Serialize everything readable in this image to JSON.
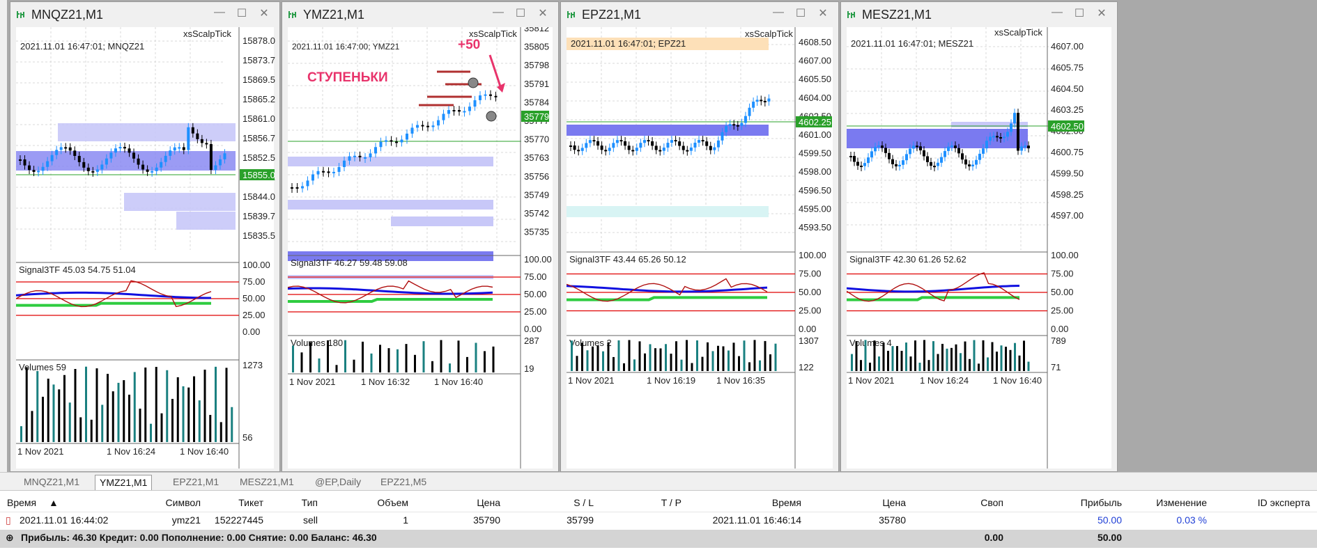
{
  "windows": [
    {
      "title": "MNQZ21,M1",
      "info": "2021.11.01 16:47:01; MNQZ21",
      "indicator_name": "xsScalpTick",
      "prices": [
        "15878.00",
        "15873.75",
        "15869.50",
        "15865.25",
        "15861.00",
        "15856.75",
        "15852.50",
        "15848.25",
        "15844.00",
        "15839.75",
        "15835.50"
      ],
      "current_price": "15855.00",
      "signal_label": "Signal3TF 45.03 54.75 51.04",
      "signal_levels": [
        "100.00",
        "75.00",
        "50.00",
        "25.00",
        "0.00"
      ],
      "volume_label": "Volumes 59",
      "volume_top": "1273",
      "volume_bottom": "56",
      "dates": [
        "1 Nov 2021",
        "1 Nov 16:24",
        "1 Nov 16:40"
      ]
    },
    {
      "title": "YMZ21,M1",
      "info": "2021.11.01 16:47:00; YMZ21",
      "indicator_name": "xsScalpTick",
      "prices": [
        "35812",
        "35805",
        "35798",
        "35791",
        "35784",
        "35777",
        "35770",
        "35763",
        "35756",
        "35749",
        "35742",
        "35735"
      ],
      "current_price": "35779",
      "annotation_text": "СТУПЕНЬКИ",
      "annotation_plus": "+50",
      "signal_label": "Signal3TF 46.27 59.48 59.08",
      "signal_levels": [
        "100.00",
        "75.00",
        "50.00",
        "25.00",
        "0.00"
      ],
      "volume_label": "Volumes 180",
      "volume_top": "287",
      "volume_bottom": "19",
      "dates": [
        "1 Nov 2021",
        "1 Nov 16:32",
        "1 Nov 16:40"
      ]
    },
    {
      "title": "EPZ21,M1",
      "info": "2021.11.01 16:47:01; EPZ21",
      "indicator_name": "xsScalpTick",
      "prices": [
        "4608.50",
        "4607.00",
        "4605.50",
        "4604.00",
        "4602.50",
        "4601.00",
        "4599.50",
        "4598.00",
        "4596.50",
        "4595.00",
        "4593.50"
      ],
      "current_price": "4602.25",
      "signal_label": "Signal3TF 43.44 65.26 50.12",
      "signal_levels": [
        "100.00",
        "75.00",
        "50.00",
        "25.00",
        "0.00"
      ],
      "volume_label": "Volumes 2",
      "volume_top": "1307",
      "volume_bottom": "122",
      "dates": [
        "1 Nov 2021",
        "1 Nov 16:19",
        "1 Nov 16:35"
      ]
    },
    {
      "title": "MESZ21,M1",
      "info": "2021.11.01 16:47:01; MESZ21",
      "indicator_name": "xsScalpTick",
      "prices": [
        "4607.00",
        "4605.75",
        "4604.50",
        "4603.25",
        "4602.00",
        "4600.75",
        "4599.50",
        "4598.25",
        "4597.00"
      ],
      "current_price": "4602.50",
      "signal_label": "Signal3TF 42.30 61.26 52.62",
      "signal_levels": [
        "100.00",
        "75.00",
        "50.00",
        "25.00",
        "0.00"
      ],
      "volume_label": "Volumes 4",
      "volume_top": "789",
      "volume_bottom": "71",
      "dates": [
        "1 Nov 2021",
        "1 Nov 16:24",
        "1 Nov 16:40"
      ]
    }
  ],
  "tabs": [
    "MNQZ21,M1",
    "YMZ21,M1",
    "EPZ21,M1",
    "MESZ21,M1",
    "@EP,Daily",
    "EPZ21,M5"
  ],
  "active_tab": "YMZ21,M1",
  "table": {
    "headers": {
      "time": "Время",
      "symbol": "Символ",
      "ticket": "Тикет",
      "type": "Тип",
      "volume": "Объем",
      "price": "Цена",
      "sl": "S / L",
      "tp": "T / P",
      "time2": "Время",
      "price2": "Цена",
      "swap": "Своп",
      "profit": "Прибыль",
      "change": "Изменение",
      "expert": "ID эксперта"
    },
    "row": {
      "time": "2021.11.01 16:44:02",
      "symbol": "ymz21",
      "ticket": "152227445",
      "type": "sell",
      "volume": "1",
      "price": "35790",
      "sl": "35799",
      "tp": "",
      "time2": "2021.11.01 16:46:14",
      "price2": "35780",
      "swap": "",
      "profit": "50.00",
      "change": "0.03 %",
      "expert": ""
    },
    "summary": {
      "text": "Прибыль: 46.30  Кредит: 0.00  Пополнение: 0.00  Снятие: 0.00  Баланс: 46.30",
      "swap": "0.00",
      "profit": "50.00"
    }
  },
  "colors": {
    "bull": "#1e90ff",
    "bear": "#000000",
    "zone": "#8080f0",
    "signal_red": "#e00000",
    "signal_blue": "#1010e0",
    "signal_green": "#2ecc40",
    "volume": "#1a8080"
  }
}
